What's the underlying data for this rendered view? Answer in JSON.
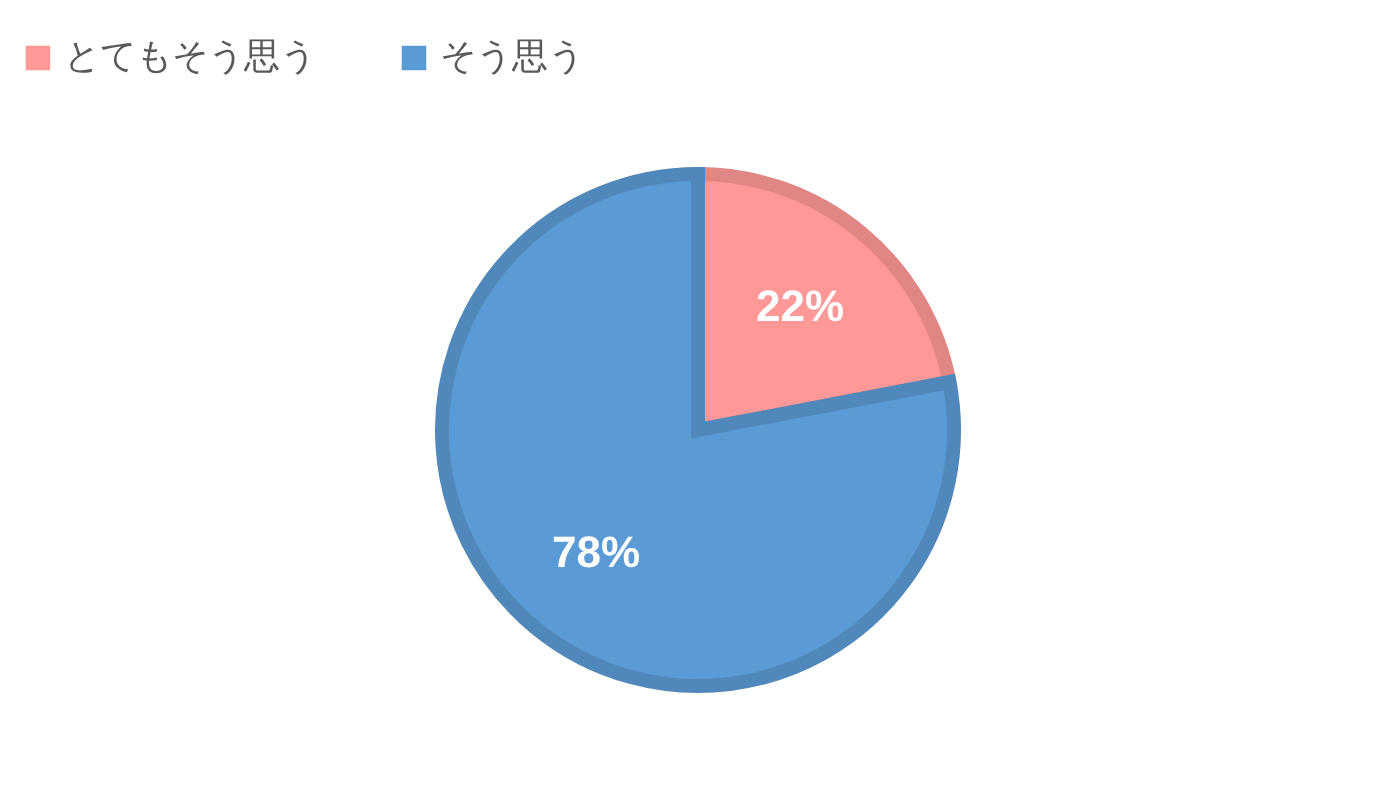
{
  "chart_data": {
    "type": "pie",
    "categories": [
      "とてもそう思う",
      "そう思う"
    ],
    "values": [
      22,
      78
    ],
    "colors": [
      "#ff9896",
      "#5b9bd5"
    ],
    "value_labels": [
      "22%",
      "78%"
    ],
    "legend": "top"
  }
}
